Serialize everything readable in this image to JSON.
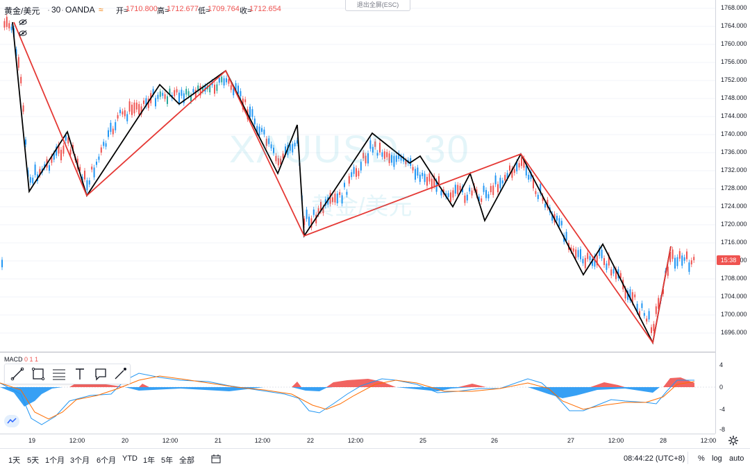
{
  "header": {
    "symbol": "黄金/美元",
    "interval": "30",
    "broker": "OANDA",
    "open_label": "开=",
    "open": "1710.800",
    "high_label": "高=",
    "high": "1712.677",
    "low_label": "低=",
    "low": "1709.764",
    "close_label": "收=",
    "close": "1712.654",
    "exit_fullscreen": "退出全屏(ESC)"
  },
  "watermark": {
    "line1": "XAUUSD, 30",
    "line2": "黄金/美元"
  },
  "price_axis": {
    "ticks": [
      "1768.000",
      "1764.000",
      "1760.000",
      "1756.000",
      "1752.000",
      "1748.000",
      "1744.000",
      "1740.000",
      "1736.000",
      "1732.000",
      "1728.000",
      "1724.000",
      "1720.000",
      "1716.000",
      "1712.000",
      "1708.000",
      "1704.000",
      "1700.000",
      "1696.000"
    ],
    "countdown": "15:38"
  },
  "macd": {
    "label": "MACD",
    "params": "0 1 1",
    "ticks": [
      "4",
      "0",
      "-4",
      "-8"
    ]
  },
  "time_axis": {
    "ticks": [
      "19",
      "12:00",
      "20",
      "12:00",
      "21",
      "12:00",
      "22",
      "12:00",
      "25",
      "26",
      "27",
      "12:00",
      "28",
      "12:00"
    ]
  },
  "bottom_bar": {
    "timeframes": [
      "1天",
      "5天",
      "1个月",
      "3个月",
      "6个月",
      "YTD",
      "1年",
      "5年",
      "全部"
    ],
    "clock": "08:44:22 (UTC+8)",
    "percent": "%",
    "log": "log",
    "auto": "auto"
  },
  "colors": {
    "up": "#ef5350",
    "down": "#2196f3",
    "zigzag_major": "#e53935",
    "zigzag_minor": "#000000",
    "macd_line": "#2196f3",
    "signal_line": "#ff6d00"
  }
}
